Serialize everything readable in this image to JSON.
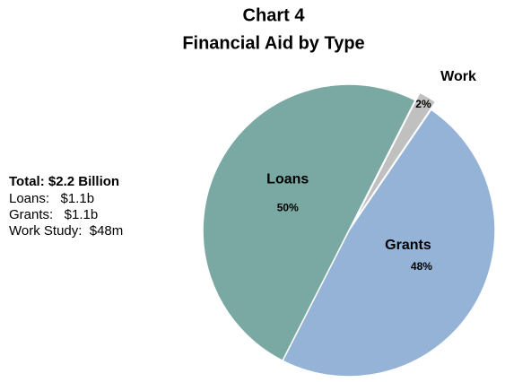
{
  "chart_data": {
    "type": "pie",
    "title": "Chart 4",
    "subtitle": "Financial Aid by Type",
    "categories": [
      "Work",
      "Grants",
      "Loans"
    ],
    "values": [
      2,
      48,
      50
    ],
    "value_labels": [
      "2%",
      "48%",
      "50%"
    ],
    "colors": [
      "#c0c0c0",
      "#95b3d7",
      "#7aa9a4"
    ],
    "summary": {
      "title": "Total: $2.2 Billion",
      "items": [
        "Loans:   $1.1b",
        "Grants:   $1.1b",
        "Work Study:  $48m"
      ]
    }
  }
}
